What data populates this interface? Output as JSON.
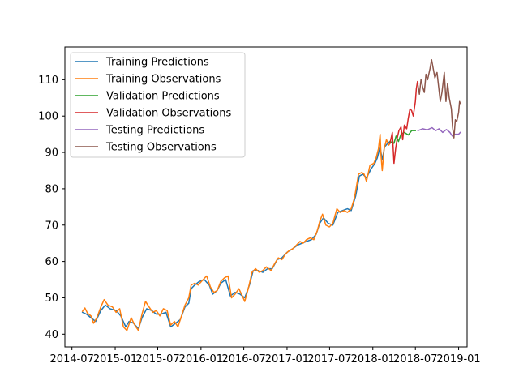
{
  "chart_data": {
    "type": "line",
    "title": "",
    "xlabel": "",
    "ylabel": "",
    "xlim": [
      "2014-06-01",
      "2019-02-06"
    ],
    "ylim": [
      36.5,
      119
    ],
    "x_ticks": [
      "2014-07",
      "2015-01",
      "2015-07",
      "2016-01",
      "2016-07",
      "2017-01",
      "2017-07",
      "2018-01",
      "2018-07",
      "2019-01"
    ],
    "y_ticks": [
      40,
      50,
      60,
      70,
      80,
      90,
      100,
      110
    ],
    "grid": false,
    "legend_position": "top-left",
    "series": [
      {
        "name": "Training Predictions",
        "color": "#1f77b4",
        "points": [
          [
            "2014-08-15",
            46.0
          ],
          [
            "2014-09-01",
            45.5
          ],
          [
            "2014-09-20",
            44.5
          ],
          [
            "2014-10-10",
            43.5
          ],
          [
            "2014-11-01",
            46.5
          ],
          [
            "2014-11-20",
            48.0
          ],
          [
            "2014-12-10",
            47.0
          ],
          [
            "2015-01-05",
            46.5
          ],
          [
            "2015-01-25",
            45.0
          ],
          [
            "2015-02-15",
            42.0
          ],
          [
            "2015-03-01",
            43.5
          ],
          [
            "2015-03-20",
            43.0
          ],
          [
            "2015-04-10",
            41.5
          ],
          [
            "2015-04-25",
            44.5
          ],
          [
            "2015-05-15",
            47.0
          ],
          [
            "2015-06-05",
            46.5
          ],
          [
            "2015-06-25",
            45.5
          ],
          [
            "2015-07-15",
            45.5
          ],
          [
            "2015-08-05",
            46.0
          ],
          [
            "2015-08-25",
            42.0
          ],
          [
            "2015-09-15",
            43.0
          ],
          [
            "2015-10-05",
            44.0
          ],
          [
            "2015-10-25",
            47.5
          ],
          [
            "2015-11-10",
            48.5
          ],
          [
            "2015-11-20",
            52.5
          ],
          [
            "2015-12-05",
            53.5
          ],
          [
            "2015-12-25",
            54.5
          ],
          [
            "2016-01-15",
            55.0
          ],
          [
            "2016-02-05",
            53.5
          ],
          [
            "2016-02-20",
            51.0
          ],
          [
            "2016-03-10",
            52.0
          ],
          [
            "2016-03-25",
            54.0
          ],
          [
            "2016-04-15",
            55.0
          ],
          [
            "2016-05-05",
            50.5
          ],
          [
            "2016-05-25",
            51.5
          ],
          [
            "2016-06-15",
            51.0
          ],
          [
            "2016-07-05",
            50.0
          ],
          [
            "2016-07-25",
            53.5
          ],
          [
            "2016-08-10",
            57.5
          ],
          [
            "2016-09-01",
            57.5
          ],
          [
            "2016-09-20",
            57.0
          ],
          [
            "2016-10-10",
            58.0
          ],
          [
            "2016-10-30",
            58.0
          ],
          [
            "2016-11-20",
            60.5
          ],
          [
            "2016-12-10",
            61.0
          ],
          [
            "2017-01-01",
            62.5
          ],
          [
            "2017-01-25",
            63.5
          ],
          [
            "2017-02-15",
            64.5
          ],
          [
            "2017-03-05",
            65.0
          ],
          [
            "2017-03-25",
            65.5
          ],
          [
            "2017-04-15",
            66.0
          ],
          [
            "2017-05-05",
            67.5
          ],
          [
            "2017-05-20",
            70.5
          ],
          [
            "2017-06-05",
            72.0
          ],
          [
            "2017-06-25",
            70.5
          ],
          [
            "2017-07-15",
            70.0
          ],
          [
            "2017-08-05",
            73.5
          ],
          [
            "2017-08-25",
            74.0
          ],
          [
            "2017-09-15",
            74.5
          ],
          [
            "2017-10-01",
            74.0
          ],
          [
            "2017-10-20",
            78.0
          ],
          [
            "2017-11-05",
            83.5
          ],
          [
            "2017-11-20",
            84.0
          ],
          [
            "2017-12-05",
            83.0
          ],
          [
            "2017-12-25",
            85.5
          ],
          [
            "2018-01-10",
            87.0
          ],
          [
            "2018-01-20",
            88.5
          ],
          [
            "2018-02-01",
            91.5
          ],
          [
            "2018-02-10",
            88.0
          ],
          [
            "2018-02-20",
            91.5
          ],
          [
            "2018-03-05",
            92.5
          ],
          [
            "2018-03-15",
            93.0
          ]
        ]
      },
      {
        "name": "Training Observations",
        "color": "#ff7f0e",
        "points": [
          [
            "2014-08-15",
            46.3
          ],
          [
            "2014-08-25",
            47.2
          ],
          [
            "2014-09-05",
            45.8
          ],
          [
            "2014-09-20",
            45.0
          ],
          [
            "2014-10-01",
            43.0
          ],
          [
            "2014-10-15",
            44.5
          ],
          [
            "2014-11-01",
            47.5
          ],
          [
            "2014-11-15",
            49.5
          ],
          [
            "2014-12-01",
            48.0
          ],
          [
            "2014-12-20",
            47.5
          ],
          [
            "2015-01-05",
            46.0
          ],
          [
            "2015-01-20",
            47.0
          ],
          [
            "2015-02-05",
            42.0
          ],
          [
            "2015-02-20",
            41.0
          ],
          [
            "2015-03-10",
            44.5
          ],
          [
            "2015-03-25",
            42.5
          ],
          [
            "2015-04-10",
            41.0
          ],
          [
            "2015-04-25",
            45.5
          ],
          [
            "2015-05-10",
            49.0
          ],
          [
            "2015-05-25",
            47.5
          ],
          [
            "2015-06-10",
            46.0
          ],
          [
            "2015-06-25",
            46.5
          ],
          [
            "2015-07-10",
            45.0
          ],
          [
            "2015-07-25",
            47.0
          ],
          [
            "2015-08-10",
            46.5
          ],
          [
            "2015-08-25",
            42.5
          ],
          [
            "2015-09-10",
            43.5
          ],
          [
            "2015-09-25",
            42.0
          ],
          [
            "2015-10-10",
            45.0
          ],
          [
            "2015-10-25",
            48.0
          ],
          [
            "2015-11-10",
            50.0
          ],
          [
            "2015-11-20",
            53.5
          ],
          [
            "2015-12-05",
            54.0
          ],
          [
            "2015-12-20",
            53.5
          ],
          [
            "2016-01-10",
            55.0
          ],
          [
            "2016-01-25",
            56.0
          ],
          [
            "2016-02-10",
            53.0
          ],
          [
            "2016-02-25",
            51.5
          ],
          [
            "2016-03-10",
            52.0
          ],
          [
            "2016-03-25",
            54.5
          ],
          [
            "2016-04-10",
            55.5
          ],
          [
            "2016-04-25",
            56.0
          ],
          [
            "2016-05-10",
            50.0
          ],
          [
            "2016-05-25",
            51.0
          ],
          [
            "2016-06-10",
            52.5
          ],
          [
            "2016-06-25",
            50.5
          ],
          [
            "2016-07-05",
            49.0
          ],
          [
            "2016-07-20",
            52.5
          ],
          [
            "2016-08-05",
            57.0
          ],
          [
            "2016-08-20",
            58.0
          ],
          [
            "2016-09-05",
            57.0
          ],
          [
            "2016-09-20",
            57.5
          ],
          [
            "2016-10-05",
            58.5
          ],
          [
            "2016-10-25",
            57.5
          ],
          [
            "2016-11-10",
            59.5
          ],
          [
            "2016-11-25",
            61.0
          ],
          [
            "2016-12-10",
            60.5
          ],
          [
            "2016-12-25",
            62.0
          ],
          [
            "2017-01-10",
            63.0
          ],
          [
            "2017-01-25",
            63.5
          ],
          [
            "2017-02-10",
            64.5
          ],
          [
            "2017-02-25",
            65.5
          ],
          [
            "2017-03-10",
            65.0
          ],
          [
            "2017-03-25",
            66.0
          ],
          [
            "2017-04-10",
            66.5
          ],
          [
            "2017-04-25",
            66.0
          ],
          [
            "2017-05-10",
            68.5
          ],
          [
            "2017-05-20",
            71.0
          ],
          [
            "2017-06-01",
            73.0
          ],
          [
            "2017-06-15",
            70.0
          ],
          [
            "2017-06-30",
            69.5
          ],
          [
            "2017-07-15",
            70.5
          ],
          [
            "2017-08-01",
            74.5
          ],
          [
            "2017-08-15",
            73.5
          ],
          [
            "2017-09-01",
            74.0
          ],
          [
            "2017-09-15",
            73.5
          ],
          [
            "2017-10-01",
            74.5
          ],
          [
            "2017-10-15",
            77.5
          ],
          [
            "2017-11-01",
            84.0
          ],
          [
            "2017-11-15",
            84.5
          ],
          [
            "2017-11-25",
            84.0
          ],
          [
            "2017-12-05",
            82.0
          ],
          [
            "2017-12-20",
            86.5
          ],
          [
            "2018-01-05",
            87.0
          ],
          [
            "2018-01-15",
            88.5
          ],
          [
            "2018-01-25",
            91.0
          ],
          [
            "2018-02-01",
            95.0
          ],
          [
            "2018-02-05",
            89.0
          ],
          [
            "2018-02-10",
            85.0
          ],
          [
            "2018-02-18",
            91.0
          ],
          [
            "2018-02-28",
            93.5
          ],
          [
            "2018-03-10",
            92.0
          ],
          [
            "2018-03-15",
            92.5
          ]
        ]
      },
      {
        "name": "Validation Predictions",
        "color": "#2ca02c",
        "points": [
          [
            "2018-03-15",
            93.0
          ],
          [
            "2018-04-01",
            92.5
          ],
          [
            "2018-04-10",
            94.5
          ],
          [
            "2018-04-20",
            93.0
          ],
          [
            "2018-05-01",
            95.0
          ],
          [
            "2018-05-15",
            95.5
          ],
          [
            "2018-06-01",
            94.8
          ],
          [
            "2018-06-15",
            96.0
          ],
          [
            "2018-07-01",
            96.0
          ]
        ]
      },
      {
        "name": "Validation Observations",
        "color": "#d62728",
        "points": [
          [
            "2018-03-15",
            92.5
          ],
          [
            "2018-03-25",
            95.5
          ],
          [
            "2018-04-01",
            87.0
          ],
          [
            "2018-04-08",
            91.0
          ],
          [
            "2018-04-15",
            94.0
          ],
          [
            "2018-04-22",
            96.0
          ],
          [
            "2018-05-01",
            97.0
          ],
          [
            "2018-05-08",
            93.5
          ],
          [
            "2018-05-15",
            97.5
          ],
          [
            "2018-05-25",
            96.5
          ],
          [
            "2018-06-01",
            99.5
          ],
          [
            "2018-06-08",
            102.0
          ],
          [
            "2018-06-15",
            101.5
          ],
          [
            "2018-06-22",
            100.0
          ],
          [
            "2018-07-01",
            104.0
          ],
          [
            "2018-07-05",
            107.5
          ],
          [
            "2018-07-10",
            109.5
          ],
          [
            "2018-07-12",
            109.0
          ]
        ]
      },
      {
        "name": "Testing Predictions",
        "color": "#9467bd",
        "points": [
          [
            "2018-07-12",
            96.0
          ],
          [
            "2018-08-01",
            96.5
          ],
          [
            "2018-08-20",
            96.2
          ],
          [
            "2018-09-10",
            96.8
          ],
          [
            "2018-09-25",
            96.0
          ],
          [
            "2018-10-10",
            96.5
          ],
          [
            "2018-10-25",
            95.5
          ],
          [
            "2018-11-10",
            96.3
          ],
          [
            "2018-11-25",
            95.5
          ],
          [
            "2018-12-05",
            94.5
          ],
          [
            "2018-12-15",
            95.0
          ],
          [
            "2019-01-01",
            95.0
          ],
          [
            "2019-01-08",
            95.5
          ]
        ]
      },
      {
        "name": "Testing Observations",
        "color": "#8c564b",
        "points": [
          [
            "2018-07-12",
            108.5
          ],
          [
            "2018-07-18",
            106.0
          ],
          [
            "2018-07-25",
            110.0
          ],
          [
            "2018-08-01",
            108.0
          ],
          [
            "2018-08-08",
            106.5
          ],
          [
            "2018-08-15",
            111.5
          ],
          [
            "2018-08-22",
            110.0
          ],
          [
            "2018-09-01",
            113.0
          ],
          [
            "2018-09-08",
            115.5
          ],
          [
            "2018-09-15",
            113.0
          ],
          [
            "2018-09-22",
            110.5
          ],
          [
            "2018-10-01",
            112.0
          ],
          [
            "2018-10-08",
            108.0
          ],
          [
            "2018-10-15",
            104.0
          ],
          [
            "2018-10-22",
            106.5
          ],
          [
            "2018-11-01",
            112.0
          ],
          [
            "2018-11-08",
            104.0
          ],
          [
            "2018-11-15",
            109.0
          ],
          [
            "2018-11-22",
            105.0
          ],
          [
            "2018-12-01",
            102.0
          ],
          [
            "2018-12-06",
            97.0
          ],
          [
            "2018-12-12",
            94.0
          ],
          [
            "2018-12-18",
            99.0
          ],
          [
            "2018-12-24",
            98.5
          ],
          [
            "2019-01-01",
            101.0
          ],
          [
            "2019-01-05",
            104.0
          ],
          [
            "2019-01-08",
            103.5
          ]
        ]
      }
    ]
  }
}
